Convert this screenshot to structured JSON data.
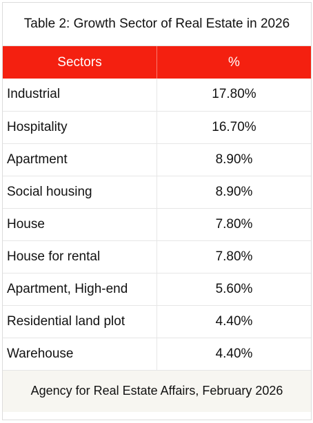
{
  "title": "Table 2: Growth Sector of Real Estate in 2026",
  "columns": [
    "Sectors",
    "%"
  ],
  "rows": [
    {
      "sector": "Industrial",
      "percent": "17.80%"
    },
    {
      "sector": "Hospitality",
      "percent": "16.70%"
    },
    {
      "sector": "Apartment",
      "percent": "8.90%"
    },
    {
      "sector": "Social housing",
      "percent": "8.90%"
    },
    {
      "sector": "House",
      "percent": "7.80%"
    },
    {
      "sector": "House for rental",
      "percent": "7.80%"
    },
    {
      "sector": "Apartment, High-end",
      "percent": "5.60%"
    },
    {
      "sector": "Residential land plot",
      "percent": "4.40%"
    },
    {
      "sector": "Warehouse",
      "percent": "4.40%"
    }
  ],
  "source": "Agency for Real Estate Affairs, February 2026",
  "colors": {
    "header_bg": "#f42010",
    "header_text": "#ffffff",
    "footer_bg": "#f7f6f1"
  }
}
